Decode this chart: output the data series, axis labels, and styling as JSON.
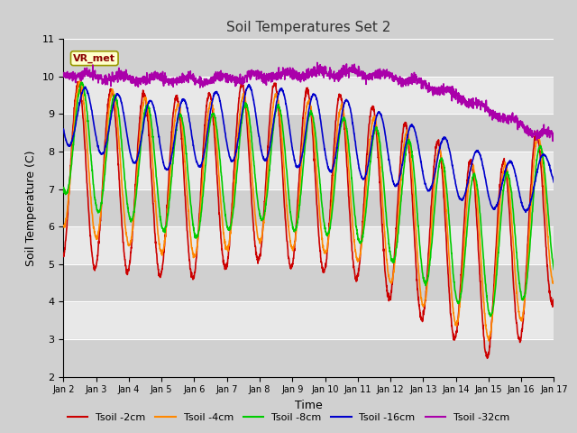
{
  "title": "Soil Temperatures Set 2",
  "xlabel": "Time",
  "ylabel": "Soil Temperature (C)",
  "ylim": [
    2.0,
    11.0
  ],
  "yticks": [
    2.0,
    3.0,
    4.0,
    5.0,
    6.0,
    7.0,
    8.0,
    9.0,
    10.0,
    11.0
  ],
  "series": [
    {
      "label": "Tsoil -2cm",
      "color": "#cc0000"
    },
    {
      "label": "Tsoil -4cm",
      "color": "#ff8800"
    },
    {
      "label": "Tsoil -8cm",
      "color": "#00cc00"
    },
    {
      "label": "Tsoil -16cm",
      "color": "#0000cc"
    },
    {
      "label": "Tsoil -32cm",
      "color": "#aa00aa"
    }
  ],
  "xtick_labels": [
    "Jan 2",
    "Jan 3",
    "Jan 4",
    "Jan 5",
    "Jan 6",
    "Jan 7",
    "Jan 8",
    "Jan 9",
    "Jan 10",
    "Jan 11",
    "Jan 12",
    "Jan 13",
    "Jan 14",
    "Jan 15",
    "Jan 16",
    "Jan 17"
  ],
  "annotation": "VR_met",
  "fig_facecolor": "#d0d0d0",
  "ax_facecolor": "#e8e8e8",
  "band_color": "#d0d0d0",
  "grid_color": "white"
}
